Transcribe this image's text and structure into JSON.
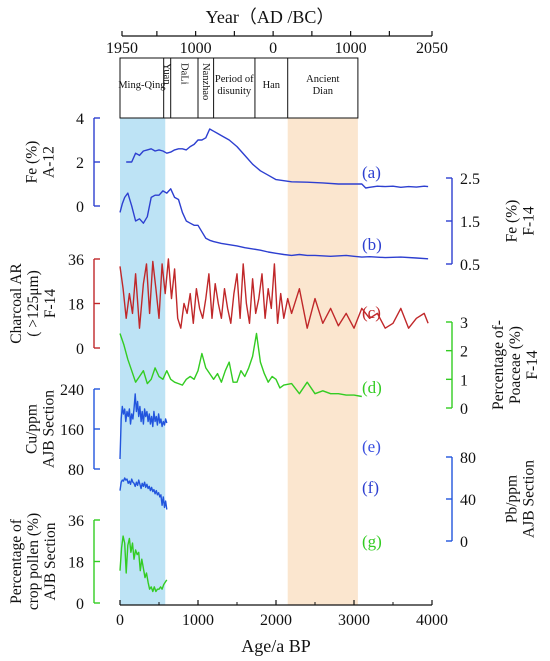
{
  "chart_data": {
    "type": "line",
    "top_axis": {
      "title": "Year（AD /BC）",
      "ticks": [
        {
          "value": 1950,
          "label": "1950"
        },
        {
          "value": 1500,
          "label": ""
        },
        {
          "value": 1000,
          "label": "1000"
        },
        {
          "value": 500,
          "label": ""
        },
        {
          "value": 0,
          "label": "0"
        },
        {
          "value": -500,
          "label": ""
        },
        {
          "value": -1000,
          "label": "1000"
        },
        {
          "value": -1500,
          "label": ""
        },
        {
          "value": -2050,
          "label": "2050"
        }
      ]
    },
    "bottom_axis": {
      "title": "Age/a BP",
      "xlim": [
        0,
        4000
      ],
      "ticks": [
        "0",
        "1000",
        "2000",
        "3000",
        "4000"
      ]
    },
    "periods": [
      {
        "label": "Ming-Qing",
        "start": 0,
        "end": 560
      },
      {
        "label": "Yuan",
        "start": 560,
        "end": 650
      },
      {
        "label": "DaLi",
        "start": 650,
        "end": 1000
      },
      {
        "label": "Nanzhao",
        "start": 1000,
        "end": 1200
      },
      {
        "label": "Period of disunity",
        "start": 1200,
        "end": 1730
      },
      {
        "label": "Han",
        "start": 1730,
        "end": 2150
      },
      {
        "label": "Ancient Dian",
        "start": 2150,
        "end": 3050
      }
    ],
    "highlights": [
      {
        "start": 0,
        "end": 580,
        "color": "#bde3f5"
      },
      {
        "start": 2150,
        "end": 3050,
        "color": "#fbe6cf"
      }
    ],
    "panels": [
      {
        "id": "a",
        "panel_label": "(a)",
        "color": "#2d3fd0",
        "label_color": "#2d3fd0",
        "axis_side": "left",
        "ylabel": [
          "Fe (%)",
          "A-12"
        ],
        "ylim": [
          0,
          4
        ],
        "ticks": [
          "0",
          "2",
          "4"
        ],
        "x": [
          80,
          150,
          200,
          250,
          300,
          350,
          400,
          450,
          500,
          550,
          600,
          650,
          700,
          750,
          800,
          850,
          900,
          950,
          1000,
          1050,
          1100,
          1150,
          1200,
          1250,
          1300,
          1400,
          1500,
          1600,
          1700,
          1800,
          1900,
          2000,
          2100,
          2200,
          2400,
          2600,
          2800,
          3000,
          3100,
          3150,
          3200,
          3300,
          3400,
          3500,
          3600,
          3700,
          3800,
          3900,
          3950
        ],
        "y": [
          2.0,
          2.0,
          2.4,
          2.3,
          2.5,
          2.55,
          2.6,
          2.5,
          2.55,
          2.5,
          2.4,
          2.45,
          2.55,
          2.6,
          2.6,
          2.55,
          2.7,
          2.8,
          3.0,
          3.0,
          3.1,
          3.5,
          3.4,
          3.3,
          3.2,
          3.0,
          2.7,
          2.3,
          1.9,
          1.6,
          1.4,
          1.2,
          1.15,
          1.1,
          1.08,
          1.05,
          1.0,
          1.0,
          1.0,
          0.82,
          0.85,
          0.9,
          0.88,
          0.9,
          0.85,
          0.88,
          0.86,
          0.9,
          0.88
        ]
      },
      {
        "id": "b",
        "panel_label": "(b)",
        "color": "#2d3fd0",
        "label_color": "#2d3fd0",
        "axis_side": "right",
        "ylabel": [
          "Fe (%)",
          "F-14"
        ],
        "ylim": [
          0.5,
          2.5
        ],
        "ticks": [
          "0.5",
          "1.5",
          "2.5"
        ],
        "x": [
          0,
          30,
          60,
          100,
          150,
          200,
          250,
          300,
          350,
          400,
          450,
          500,
          550,
          600,
          650,
          700,
          750,
          800,
          850,
          900,
          950,
          1000,
          1050,
          1100,
          1150,
          1200,
          1300,
          1400,
          1500,
          1600,
          1700,
          1800,
          1900,
          2000,
          2100,
          2200,
          2300,
          2400,
          2500,
          2700,
          2900,
          3000,
          3100,
          3200,
          3400,
          3600,
          3800,
          3950
        ],
        "y": [
          1.7,
          1.9,
          2.05,
          2.15,
          1.85,
          1.5,
          1.55,
          1.45,
          1.6,
          2.05,
          2.1,
          2.1,
          2.2,
          2.15,
          2.25,
          2.05,
          2.0,
          1.7,
          1.5,
          1.45,
          1.4,
          1.4,
          1.25,
          1.1,
          1.05,
          1.02,
          0.98,
          0.95,
          0.92,
          0.88,
          0.85,
          0.82,
          0.78,
          0.75,
          0.72,
          0.7,
          0.72,
          0.7,
          0.7,
          0.68,
          0.7,
          0.68,
          0.66,
          0.67,
          0.65,
          0.66,
          0.64,
          0.62
        ]
      },
      {
        "id": "c",
        "panel_label": "(c)",
        "color": "#c0282a",
        "label_color": "#c0282a",
        "axis_side": "left",
        "ylabel": [
          "Charcoal AR",
          "( >125μm)",
          "F-14"
        ],
        "ylim": [
          0,
          36
        ],
        "ticks": [
          "0",
          "18",
          "36"
        ],
        "x": [
          0,
          40,
          80,
          120,
          160,
          200,
          250,
          300,
          340,
          380,
          420,
          460,
          500,
          540,
          580,
          620,
          660,
          700,
          740,
          780,
          820,
          860,
          900,
          940,
          980,
          1020,
          1060,
          1100,
          1140,
          1180,
          1220,
          1260,
          1300,
          1340,
          1380,
          1420,
          1460,
          1500,
          1540,
          1580,
          1620,
          1660,
          1700,
          1740,
          1780,
          1820,
          1860,
          1900,
          1940,
          1980,
          2020,
          2060,
          2100,
          2150,
          2200,
          2300,
          2400,
          2500,
          2600,
          2700,
          2800,
          2900,
          3000,
          3100,
          3200,
          3300,
          3400,
          3500,
          3600,
          3700,
          3800,
          3900,
          3950
        ],
        "y": [
          33,
          24,
          12,
          22,
          14,
          30,
          8,
          26,
          34,
          14,
          35,
          24,
          12,
          34,
          22,
          36,
          20,
          32,
          12,
          8,
          18,
          14,
          22,
          10,
          24,
          16,
          12,
          20,
          30,
          12,
          26,
          18,
          12,
          24,
          16,
          10,
          22,
          30,
          12,
          34,
          18,
          10,
          28,
          14,
          20,
          30,
          12,
          24,
          16,
          34,
          10,
          22,
          12,
          20,
          14,
          24,
          8,
          20,
          10,
          16,
          9,
          14,
          8,
          16,
          12,
          14,
          8,
          10,
          16,
          8,
          12,
          14,
          10
        ]
      },
      {
        "id": "d",
        "panel_label": "(d)",
        "color": "#33cc22",
        "label_color": "#33cc22",
        "axis_side": "right",
        "ylabel": [
          "Percentage of-",
          "Poaceae (%)",
          "F-14"
        ],
        "ylim": [
          0,
          3
        ],
        "ticks": [
          "0",
          "1",
          "2",
          "3"
        ],
        "x": [
          0,
          50,
          100,
          150,
          200,
          250,
          300,
          350,
          400,
          450,
          500,
          550,
          600,
          650,
          700,
          750,
          800,
          850,
          900,
          950,
          1000,
          1050,
          1100,
          1150,
          1200,
          1250,
          1300,
          1350,
          1400,
          1450,
          1500,
          1550,
          1600,
          1650,
          1700,
          1750,
          1800,
          1850,
          1900,
          1950,
          2000,
          2050,
          2100,
          2200,
          2300,
          2400,
          2500,
          2600,
          2700,
          2800,
          2900,
          3000,
          3100
        ],
        "y": [
          2.6,
          2.2,
          1.7,
          1.3,
          0.9,
          1.1,
          1.3,
          0.85,
          1.0,
          1.4,
          1.1,
          1.0,
          1.3,
          1.0,
          0.9,
          0.85,
          0.8,
          1.0,
          1.1,
          1.0,
          1.3,
          1.9,
          1.4,
          1.2,
          1.0,
          1.2,
          0.9,
          1.3,
          1.6,
          0.9,
          0.9,
          1.3,
          1.1,
          1.4,
          1.8,
          2.6,
          1.6,
          1.2,
          0.9,
          1.1,
          1.0,
          0.7,
          0.8,
          0.85,
          0.5,
          0.9,
          0.5,
          0.6,
          0.5,
          0.5,
          0.45,
          0.45,
          0.4
        ]
      },
      {
        "id": "e",
        "panel_label": "(e)",
        "color": "#2255dd",
        "label_color": "#3a4fe0",
        "axis_side": "left",
        "ylabel": [
          "Cu/ppm",
          "AJB Section"
        ],
        "ylim": [
          80,
          240
        ],
        "ticks": [
          "80",
          "160",
          "240"
        ],
        "x": [
          0,
          15,
          30,
          45,
          60,
          75,
          90,
          105,
          120,
          135,
          150,
          165,
          180,
          195,
          210,
          225,
          240,
          255,
          270,
          285,
          300,
          315,
          330,
          345,
          360,
          375,
          390,
          405,
          420,
          435,
          450,
          465,
          480,
          495,
          510,
          525,
          540,
          555,
          570,
          585,
          600
        ],
        "y": [
          100,
          180,
          205,
          190,
          200,
          175,
          195,
          185,
          200,
          170,
          190,
          180,
          200,
          230,
          195,
          215,
          185,
          205,
          175,
          195,
          170,
          200,
          185,
          195,
          175,
          190,
          170,
          185,
          165,
          195,
          175,
          185,
          168,
          190,
          172,
          180,
          165,
          175,
          168,
          180,
          172
        ]
      },
      {
        "id": "f",
        "panel_label": "(f)",
        "color": "#2255dd",
        "label_color": "#2d3fd0",
        "axis_side": "right",
        "ylabel": [
          "Pb/ppm",
          "AJB Section"
        ],
        "ylim": [
          0,
          80
        ],
        "ticks": [
          "0",
          "40",
          "80"
        ],
        "x": [
          0,
          15,
          30,
          45,
          60,
          75,
          90,
          105,
          120,
          135,
          150,
          165,
          180,
          195,
          210,
          225,
          240,
          255,
          270,
          285,
          300,
          315,
          330,
          345,
          360,
          375,
          390,
          405,
          420,
          435,
          450,
          465,
          480,
          495,
          510,
          525,
          540,
          555,
          570,
          585,
          600
        ],
        "y": [
          48,
          56,
          58,
          57,
          60,
          58,
          59,
          55,
          57,
          54,
          59,
          56,
          55,
          52,
          56,
          53,
          58,
          54,
          50,
          55,
          52,
          56,
          51,
          54,
          50,
          52,
          48,
          51,
          47,
          49,
          45,
          48,
          44,
          46,
          42,
          44,
          34,
          42,
          32,
          38,
          30
        ]
      },
      {
        "id": "g",
        "panel_label": "(g)",
        "color": "#33cc22",
        "label_color": "#33cc22",
        "axis_side": "left",
        "ylabel": [
          "Percentage of",
          "crop pollen (%)",
          "AJB Section"
        ],
        "ylim": [
          0,
          36
        ],
        "ticks": [
          "0",
          "18",
          "36"
        ],
        "x": [
          0,
          20,
          40,
          60,
          80,
          100,
          120,
          140,
          160,
          180,
          200,
          220,
          240,
          260,
          280,
          300,
          320,
          340,
          360,
          380,
          400,
          420,
          440,
          460,
          480,
          500,
          520,
          540,
          560,
          580,
          600
        ],
        "y": [
          14,
          24,
          29,
          26,
          13,
          25,
          28,
          22,
          26,
          19,
          23,
          21,
          22,
          14,
          19,
          15,
          11,
          13,
          9,
          6,
          7,
          5,
          7,
          5,
          6,
          6,
          7,
          6,
          8,
          9,
          10
        ]
      }
    ]
  }
}
